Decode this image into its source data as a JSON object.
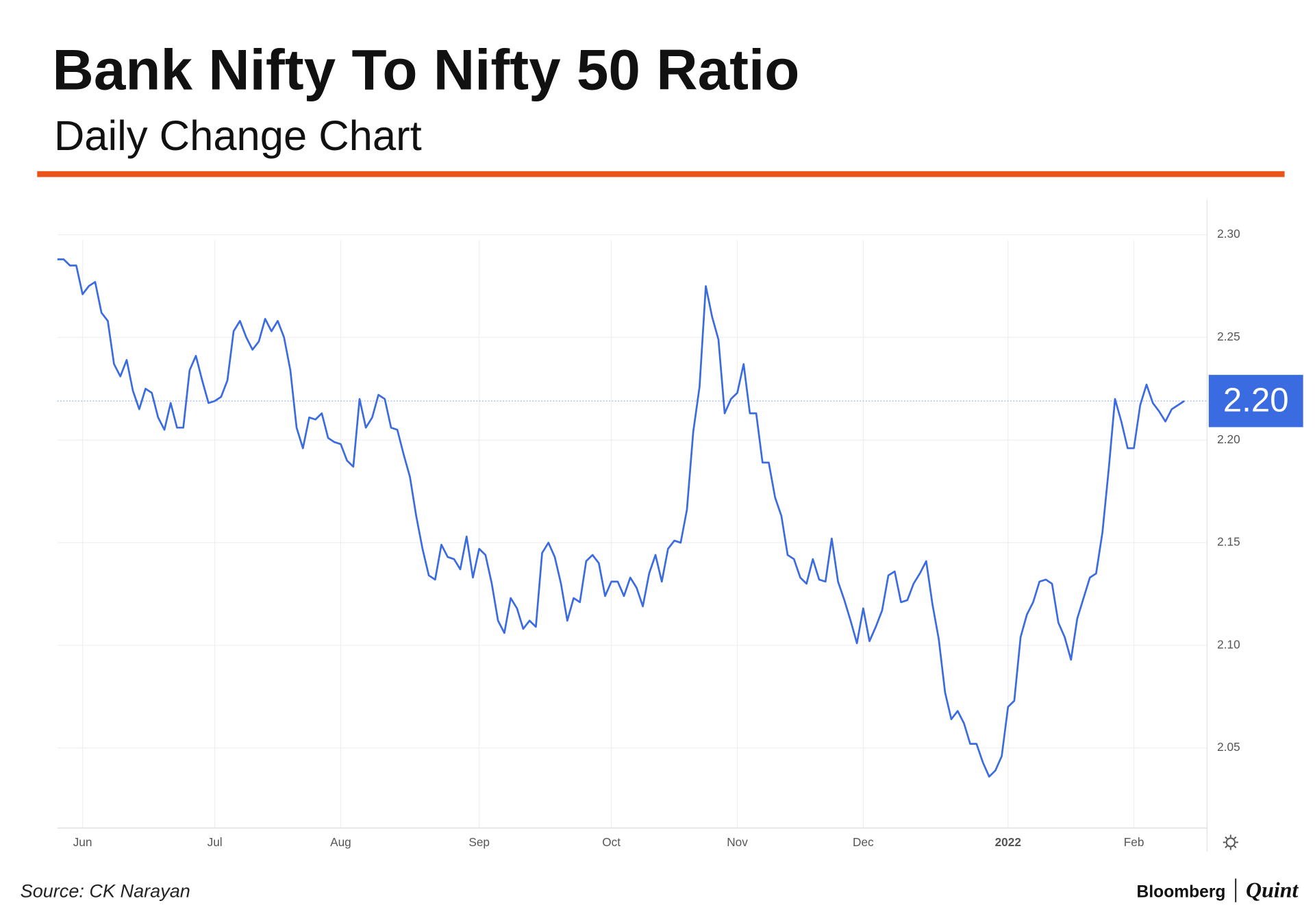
{
  "chart_data": {
    "type": "line",
    "title": "Bank Nifty To Nifty 50 Ratio",
    "subtitle": "Daily Change Chart",
    "source": "Source: CK Narayan",
    "brand": [
      "Bloomberg",
      "Quint"
    ],
    "price_tag": "2.20",
    "color": "#3b6be0",
    "grid": true,
    "ylim": [
      2.011,
      2.317
    ],
    "yticks": [
      2.05,
      {
        "value": 2.1,
        "label": "2.10"
      },
      2.15,
      {
        "value": 2.2,
        "label": "2.20"
      },
      2.25,
      {
        "value": 2.3,
        "label": "2.30"
      }
    ],
    "categories": [
      null,
      null,
      null,
      null,
      "Jun",
      null,
      null,
      null,
      null,
      null,
      null,
      null,
      null,
      null,
      null,
      null,
      null,
      null,
      null,
      null,
      null,
      null,
      null,
      null,
      null,
      "Jul",
      null,
      null,
      null,
      null,
      null,
      null,
      null,
      null,
      null,
      null,
      null,
      null,
      null,
      null,
      null,
      null,
      null,
      null,
      null,
      "Aug",
      null,
      null,
      null,
      null,
      null,
      null,
      null,
      null,
      null,
      null,
      null,
      null,
      null,
      null,
      null,
      null,
      null,
      null,
      null,
      null,
      null,
      "Sep",
      null,
      null,
      null,
      null,
      null,
      null,
      null,
      null,
      null,
      null,
      null,
      null,
      null,
      null,
      null,
      null,
      null,
      null,
      null,
      null,
      "Oct",
      null,
      null,
      null,
      null,
      null,
      null,
      null,
      null,
      null,
      null,
      null,
      null,
      null,
      null,
      null,
      null,
      null,
      null,
      null,
      "Nov",
      null,
      null,
      null,
      null,
      null,
      null,
      null,
      null,
      null,
      null,
      null,
      null,
      null,
      null,
      null,
      null,
      null,
      null,
      null,
      "Dec",
      null,
      null,
      null,
      null,
      null,
      null,
      null,
      null,
      null,
      null,
      null,
      null,
      null,
      null,
      null,
      null,
      null,
      null,
      null,
      null,
      null,
      null,
      "2022",
      null,
      null,
      null,
      null,
      null,
      null,
      null,
      null,
      null,
      null,
      null,
      null,
      null,
      null,
      null,
      null,
      null,
      null,
      null,
      "Feb",
      null,
      null,
      null,
      null,
      null,
      null,
      null,
      null
    ],
    "values": [
      2.288,
      2.288,
      2.285,
      2.285,
      2.271,
      2.275,
      2.277,
      2.262,
      2.258,
      2.237,
      2.231,
      2.239,
      2.224,
      2.215,
      2.225,
      2.223,
      2.211,
      2.205,
      2.218,
      2.206,
      2.206,
      2.234,
      2.241,
      2.229,
      2.218,
      2.219,
      2.221,
      2.229,
      2.253,
      2.258,
      2.25,
      2.244,
      2.248,
      2.259,
      2.253,
      2.258,
      2.25,
      2.234,
      2.206,
      2.196,
      2.211,
      2.21,
      2.213,
      2.201,
      2.199,
      2.198,
      2.19,
      2.187,
      2.22,
      2.206,
      2.211,
      2.222,
      2.22,
      2.206,
      2.205,
      2.193,
      2.182,
      2.163,
      2.147,
      2.134,
      2.132,
      2.149,
      2.143,
      2.142,
      2.137,
      2.153,
      2.133,
      2.147,
      2.144,
      2.13,
      2.112,
      2.106,
      2.123,
      2.118,
      2.108,
      2.112,
      2.109,
      2.145,
      2.15,
      2.143,
      2.13,
      2.112,
      2.123,
      2.121,
      2.141,
      2.144,
      2.14,
      2.124,
      2.131,
      2.131,
      2.124,
      2.133,
      2.128,
      2.119,
      2.135,
      2.144,
      2.131,
      2.147,
      2.151,
      2.15,
      2.166,
      2.204,
      2.226,
      2.275,
      2.26,
      2.249,
      2.213,
      2.22,
      2.223,
      2.237,
      2.213,
      2.213,
      2.189,
      2.189,
      2.172,
      2.163,
      2.144,
      2.142,
      2.133,
      2.13,
      2.142,
      2.132,
      2.131,
      2.152,
      2.131,
      2.122,
      2.112,
      2.101,
      2.118,
      2.102,
      2.109,
      2.117,
      2.134,
      2.136,
      2.121,
      2.122,
      2.13,
      2.135,
      2.141,
      2.12,
      2.103,
      2.077,
      2.064,
      2.068,
      2.062,
      2.052,
      2.052,
      2.043,
      2.036,
      2.039,
      2.046,
      2.07,
      2.073,
      2.104,
      2.115,
      2.121,
      2.131,
      2.132,
      2.13,
      2.111,
      2.104,
      2.093,
      2.113,
      2.123,
      2.133,
      2.135,
      2.155,
      2.186,
      2.22,
      2.209,
      2.196,
      2.196,
      2.217,
      2.227,
      2.218,
      2.214,
      2.209,
      2.215,
      2.217,
      2.219
    ]
  }
}
